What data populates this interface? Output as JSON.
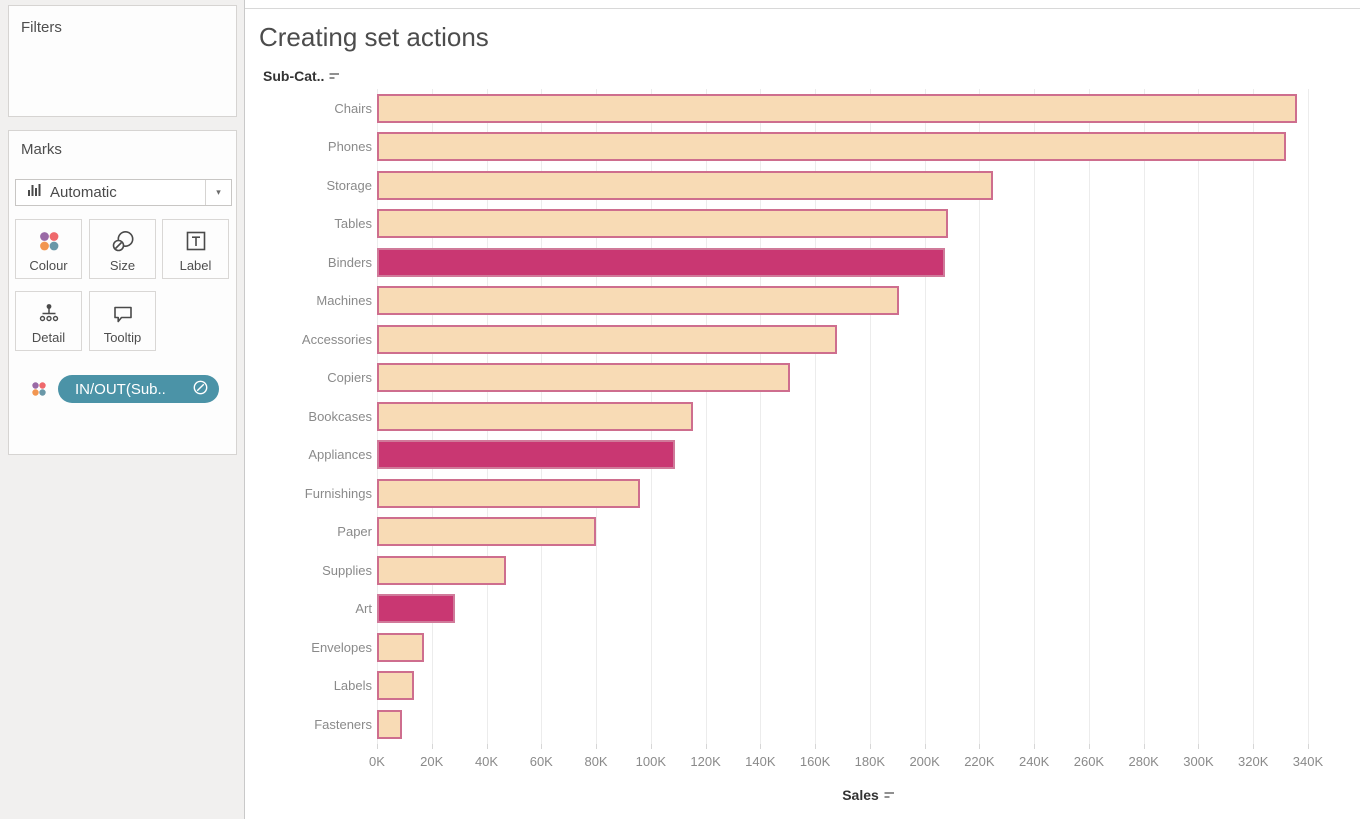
{
  "sidebar": {
    "filters": {
      "title": "Filters"
    },
    "marks": {
      "title": "Marks",
      "mark_type": {
        "label": "Automatic",
        "icon": "bar-chart-icon",
        "caret": "▾"
      },
      "buttons": [
        {
          "label": "Colour",
          "icon": "colour-dots-icon"
        },
        {
          "label": "Size",
          "icon": "size-circles-icon"
        },
        {
          "label": "Label",
          "icon": "text-label-icon"
        },
        {
          "label": "Detail",
          "icon": "detail-hierarchy-icon"
        },
        {
          "label": "Tooltip",
          "icon": "tooltip-bubble-icon"
        }
      ],
      "pill": {
        "label": "IN/OUT(Sub..",
        "icon": "set-link-icon",
        "color": "#4b93a7"
      }
    }
  },
  "chart": {
    "title": "Creating set actions",
    "row_header": "Sub-Cat..",
    "axis_label": "Sales"
  },
  "chart_data": {
    "type": "bar",
    "orientation": "horizontal",
    "title": "Creating set actions",
    "row_field": "Sub-Cat..",
    "value_field": "Sales",
    "categories": [
      "Chairs",
      "Phones",
      "Storage",
      "Tables",
      "Binders",
      "Machines",
      "Accessories",
      "Copiers",
      "Bookcases",
      "Appliances",
      "Furnishings",
      "Paper",
      "Supplies",
      "Art",
      "Envelopes",
      "Labels",
      "Fasteners"
    ],
    "values": [
      336000,
      332000,
      225000,
      208500,
      207500,
      190500,
      168000,
      151000,
      115500,
      108800,
      96200,
      80000,
      47000,
      28500,
      17200,
      13500,
      9000
    ],
    "in_set": [
      false,
      false,
      false,
      false,
      true,
      false,
      false,
      false,
      false,
      true,
      false,
      false,
      false,
      true,
      false,
      false,
      false
    ],
    "in_set_categories": [
      "Binders",
      "Appliances",
      "Art"
    ],
    "x_tick_values": [
      0,
      20000,
      40000,
      60000,
      80000,
      100000,
      120000,
      140000,
      160000,
      180000,
      200000,
      220000,
      240000,
      260000,
      280000,
      300000,
      320000,
      340000
    ],
    "x_tick_labels": [
      "0K",
      "20K",
      "40K",
      "60K",
      "80K",
      "100K",
      "120K",
      "140K",
      "160K",
      "180K",
      "200K",
      "220K",
      "240K",
      "260K",
      "280K",
      "300K",
      "320K",
      "340K"
    ],
    "xlim": [
      0,
      359000
    ],
    "grid": "vertical-only",
    "sorted": "descending",
    "colors": {
      "out_of_set_fill": "#f8dbb5",
      "bar_border": "#ce6e8e",
      "in_set_fill": "#c93772",
      "in_set_border": "#d07a9a"
    }
  },
  "colors": {
    "accent_teal": "#4b93a7",
    "gridline": "#ececec",
    "label_gray": "#8a8a8a",
    "header_dark": "#333333",
    "title_gray": "#4c4c4c",
    "sidebar_bg": "#f1f0ef",
    "dot_purple": "#9a6aa6",
    "dot_red": "#ef696c",
    "dot_orange": "#f29651",
    "dot_teal": "#6a98a8"
  }
}
